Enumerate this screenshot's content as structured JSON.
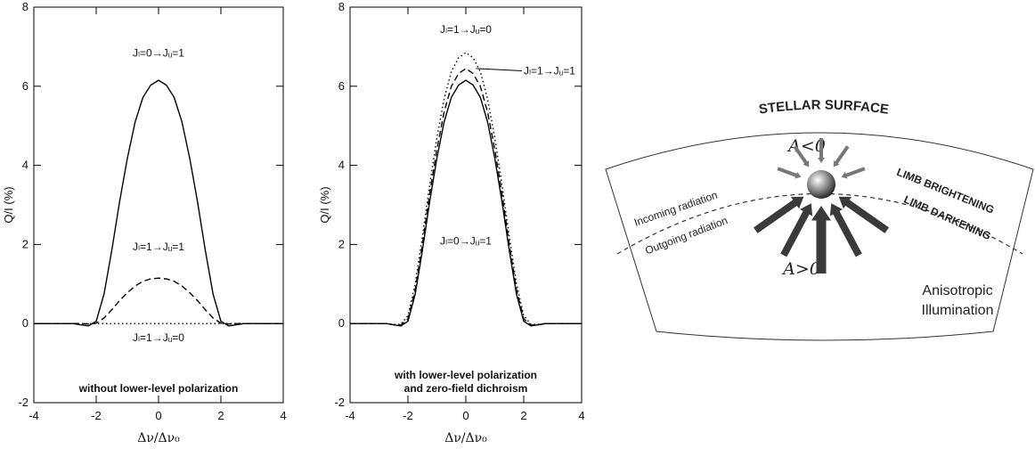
{
  "chart_data": [
    {
      "type": "line",
      "xlabel": "Δν/Δν₀",
      "ylabel": "Q/I (%)",
      "note": [
        "without lower-level polarization"
      ],
      "x": [
        -4,
        -3.75,
        -3.5,
        -3.25,
        -3,
        -2.75,
        -2.5,
        -2.25,
        -2,
        -1.75,
        -1.5,
        -1.25,
        -1,
        -0.75,
        -0.5,
        -0.25,
        0,
        0.25,
        0.5,
        0.75,
        1,
        1.25,
        1.5,
        1.75,
        2,
        2.25,
        2.5,
        2.75,
        3,
        3.25,
        3.5,
        3.75,
        4
      ],
      "xlim": [
        -4,
        4
      ],
      "xticks": [
        -4,
        -2,
        0,
        2,
        4
      ],
      "ylim": [
        -2,
        8
      ],
      "yticks": [
        -2,
        0,
        2,
        4,
        6,
        8
      ],
      "series": [
        {
          "name": "Jₗ=0→Jᵤ=1",
          "color": "#000",
          "linestyle": "solid",
          "values": [
            0,
            0,
            0,
            0,
            0,
            0,
            -0.03,
            -0.06,
            0.06,
            0.74,
            1.85,
            3.08,
            4.18,
            5.1,
            5.72,
            6.03,
            6.15,
            6.03,
            5.72,
            5.1,
            4.18,
            3.08,
            1.85,
            0.74,
            0.06,
            -0.06,
            -0.03,
            0,
            0,
            0,
            0,
            0,
            0
          ]
        },
        {
          "name": "Jₗ=1→Jᵤ=1",
          "color": "#000",
          "linestyle": "dashed",
          "values": [
            0,
            0,
            0,
            0,
            0,
            0,
            0,
            -0.01,
            0.01,
            0.14,
            0.35,
            0.58,
            0.78,
            0.95,
            1.07,
            1.13,
            1.15,
            1.13,
            1.07,
            0.95,
            0.78,
            0.58,
            0.35,
            0.14,
            0.01,
            -0.01,
            0,
            0,
            0,
            0,
            0,
            0,
            0
          ]
        },
        {
          "name": "Jₗ=1→Jᵤ=0",
          "color": "#000",
          "linestyle": "dotted",
          "values": [
            0,
            0,
            0,
            0,
            0,
            0,
            0,
            0,
            0,
            0,
            0,
            0,
            0,
            0,
            0,
            0,
            0,
            0,
            0,
            0,
            0,
            0,
            0,
            0,
            0,
            0,
            0,
            0,
            0,
            0,
            0,
            0,
            0
          ]
        }
      ]
    },
    {
      "type": "line",
      "xlabel": "Δν/Δν₀",
      "ylabel": "Q/I (%)",
      "note": [
        "with lower-level polarization",
        "and zero-field dichroism"
      ],
      "x": [
        -4,
        -3.75,
        -3.5,
        -3.25,
        -3,
        -2.75,
        -2.5,
        -2.25,
        -2,
        -1.75,
        -1.5,
        -1.25,
        -1,
        -0.75,
        -0.5,
        -0.25,
        0,
        0.25,
        0.5,
        0.75,
        1,
        1.25,
        1.5,
        1.75,
        2,
        2.25,
        2.5,
        2.75,
        3,
        3.25,
        3.5,
        3.75,
        4
      ],
      "xlim": [
        -4,
        4
      ],
      "xticks": [
        -4,
        -2,
        0,
        2,
        4
      ],
      "ylim": [
        -2,
        8
      ],
      "yticks": [
        -2,
        0,
        2,
        4,
        6,
        8
      ],
      "series": [
        {
          "name": "Jₗ=0→Jᵤ=1",
          "color": "#000",
          "linestyle": "solid",
          "values": [
            0,
            0,
            0,
            0,
            0,
            0,
            -0.03,
            -0.06,
            0.06,
            0.74,
            1.85,
            3.08,
            4.18,
            5.1,
            5.72,
            6.03,
            6.15,
            6.03,
            5.72,
            5.1,
            4.18,
            3.08,
            1.85,
            0.74,
            0.06,
            -0.06,
            -0.03,
            0,
            0,
            0,
            0,
            0,
            0
          ]
        },
        {
          "name": "Jₗ=1→Jᵤ=1",
          "color": "#000",
          "linestyle": "dashed",
          "values": [
            0,
            0,
            0,
            0,
            0,
            0,
            -0.03,
            -0.04,
            0.12,
            0.85,
            2.0,
            3.28,
            4.4,
            5.35,
            6.0,
            6.32,
            6.45,
            6.32,
            6.0,
            5.35,
            4.4,
            3.28,
            2.0,
            0.85,
            0.12,
            -0.04,
            -0.03,
            0,
            0,
            0,
            0,
            0,
            0
          ]
        },
        {
          "name": "Jₗ=1→Jᵤ=0",
          "color": "#000",
          "linestyle": "dotted",
          "values": [
            0,
            0,
            0,
            0,
            0,
            0,
            -0.02,
            -0.02,
            0.2,
            1.0,
            2.2,
            3.5,
            4.7,
            5.68,
            6.37,
            6.72,
            6.85,
            6.72,
            6.37,
            5.68,
            4.7,
            3.5,
            2.2,
            1.0,
            0.2,
            -0.02,
            -0.02,
            0,
            0,
            0,
            0,
            0,
            0
          ]
        }
      ]
    }
  ],
  "diagram": {
    "title": "STELLAR SURFACE",
    "negative": "A<0",
    "positive": "A>0",
    "incoming": "Incoming radiation",
    "outgoing": "Outgoing radiation",
    "brightening": "LIMB BRIGHTENING",
    "darkening": "LIMB DARKENING",
    "caption": [
      "Anisotropic",
      "Illumination"
    ]
  }
}
